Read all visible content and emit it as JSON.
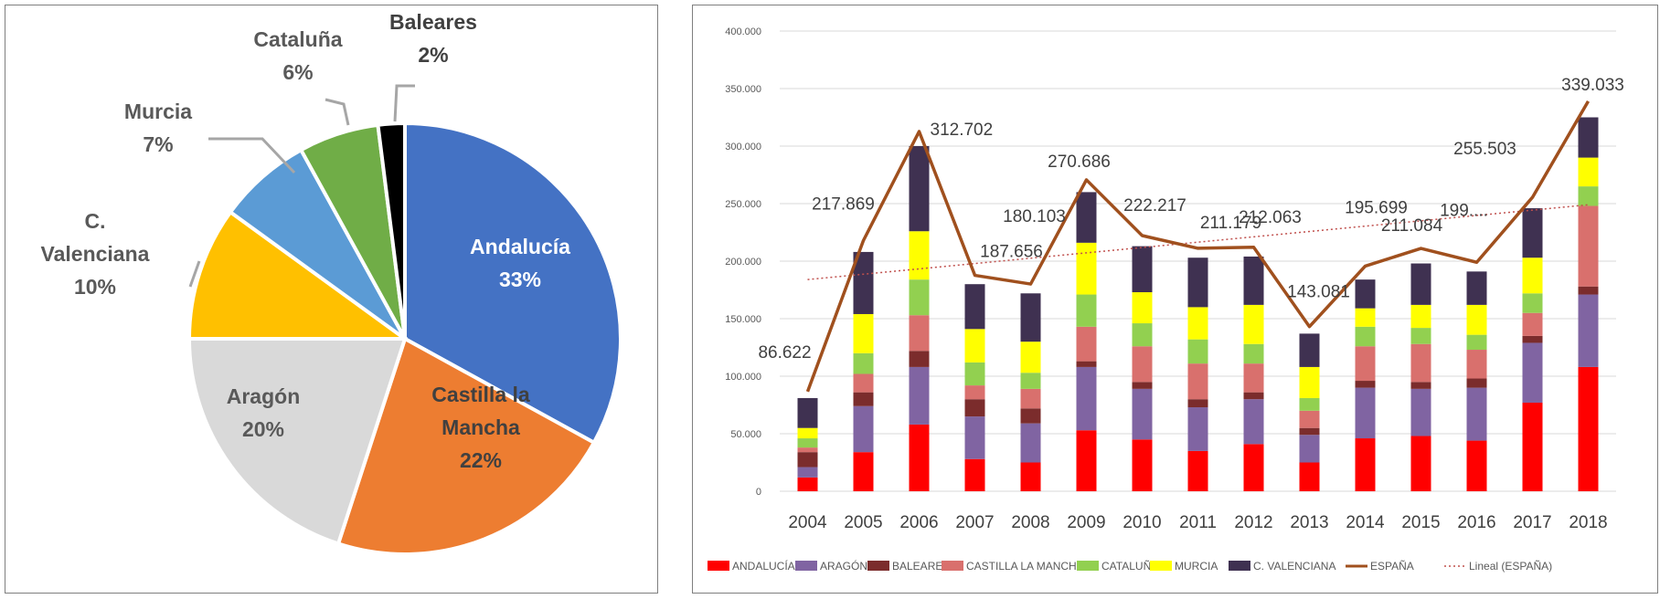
{
  "chart_data": [
    {
      "type": "pie",
      "slices": [
        {
          "label": "Andalucía",
          "value": 33,
          "pct_label": "33%",
          "color": "#4472C4"
        },
        {
          "label": "Castilla la Mancha",
          "value": 22,
          "pct_label": "22%",
          "color": "#ED7D31"
        },
        {
          "label": "Aragón",
          "value": 20,
          "pct_label": "20%",
          "color": "#D9D9D9"
        },
        {
          "label": "C. Valenciana",
          "value": 10,
          "pct_label": "10%",
          "color": "#FFC000"
        },
        {
          "label": "Murcia",
          "value": 7,
          "pct_label": "7%",
          "color": "#5B9BD5"
        },
        {
          "label": "Cataluña",
          "value": 6,
          "pct_label": "6%",
          "color": "#70AD47"
        },
        {
          "label": "Baleares",
          "value": 2,
          "pct_label": "2%",
          "color": "#000000"
        }
      ]
    },
    {
      "type": "bar",
      "stacked": true,
      "categories": [
        "2004",
        "2005",
        "2006",
        "2007",
        "2008",
        "2009",
        "2010",
        "2011",
        "2012",
        "2013",
        "2014",
        "2015",
        "2016",
        "2017",
        "2018"
      ],
      "ylim": [
        0,
        400000
      ],
      "yticks": [
        "0",
        "50.000",
        "100.000",
        "150.000",
        "200.000",
        "250.000",
        "300.000",
        "350.000",
        "400.000"
      ],
      "grid": true,
      "legend_position": "bottom",
      "series": [
        {
          "name": "ANDALUCÍA",
          "color": "#FF0000",
          "values": [
            12000,
            34000,
            58000,
            28000,
            25000,
            53000,
            45000,
            35000,
            41000,
            25000,
            46000,
            48000,
            44000,
            77000,
            108000
          ]
        },
        {
          "name": "ARAGÓN",
          "color": "#8064A2",
          "values": [
            9000,
            40000,
            50000,
            37000,
            34000,
            55000,
            44000,
            38000,
            39000,
            24000,
            44000,
            41000,
            46000,
            52000,
            63000
          ]
        },
        {
          "name": "BALEARES",
          "color": "#7B2C2C",
          "values": [
            13000,
            12000,
            14000,
            15000,
            13000,
            5000,
            6000,
            7000,
            6000,
            6000,
            6000,
            6000,
            8000,
            6000,
            7000
          ]
        },
        {
          "name": "CASTILLA LA MANCHA",
          "color": "#D9706D",
          "values": [
            4000,
            16000,
            31000,
            12000,
            17000,
            30000,
            31000,
            31000,
            25000,
            15000,
            30000,
            33000,
            25000,
            20000,
            70000
          ]
        },
        {
          "name": "CATALUÑA",
          "color": "#92D050",
          "values": [
            8000,
            18000,
            31000,
            20000,
            14000,
            28000,
            20000,
            21000,
            17000,
            11000,
            17000,
            14000,
            13000,
            17000,
            17000
          ]
        },
        {
          "name": "MURCIA",
          "color": "#FFFF00",
          "values": [
            9000,
            34000,
            42000,
            29000,
            27000,
            45000,
            27000,
            28000,
            34000,
            27000,
            16000,
            20000,
            26000,
            31000,
            25000
          ]
        },
        {
          "name": "C. VALENCIANA",
          "color": "#3F3151",
          "values": [
            26000,
            54000,
            74000,
            39000,
            42000,
            44000,
            40000,
            43000,
            42000,
            29000,
            25000,
            36000,
            29000,
            43000,
            35000
          ]
        }
      ],
      "line_series": {
        "name": "ESPAÑA",
        "color": "#A0501E",
        "values": [
          86622,
          217869,
          312702,
          187656,
          180103,
          270686,
          222217,
          211179,
          212063,
          143081,
          195699,
          211084,
          199000,
          255503,
          339033
        ],
        "labels": [
          "86.622",
          "217.869",
          "312.702",
          "187.656",
          "180.103",
          "270.686",
          "222.217",
          "211.179",
          "212.063",
          "143.081",
          "195.699",
          "211.084",
          "199....",
          "255.503",
          "339.033"
        ]
      },
      "trend_line": {
        "name": "Lineal (ESPAÑA)",
        "color": "#C0504D",
        "start": 184000,
        "end": 249000
      }
    }
  ]
}
